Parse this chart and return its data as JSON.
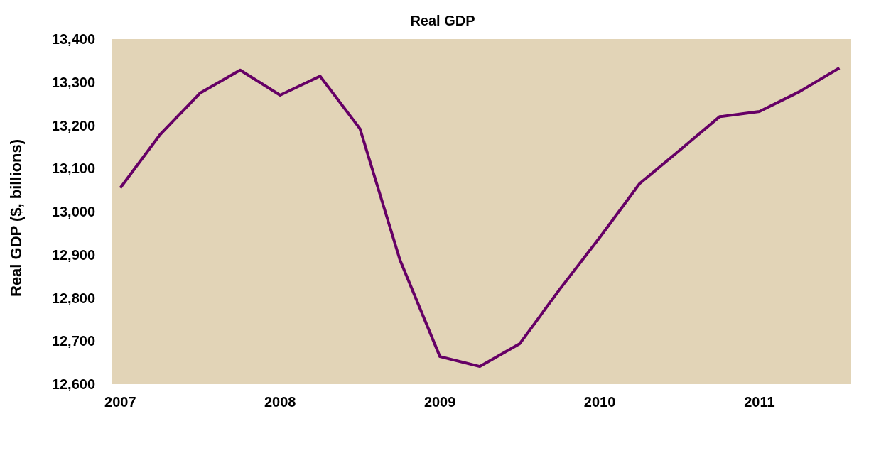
{
  "chart_data": {
    "type": "line",
    "title": "Real GDP",
    "ylabel": "Real GDP ($, billions)",
    "x": [
      "2007-01",
      "2007-04",
      "2007-07",
      "2007-10",
      "2008-01",
      "2008-04",
      "2008-07",
      "2008-10",
      "2009-01",
      "2009-04",
      "2009-07",
      "2009-10",
      "2010-01",
      "2010-04",
      "2010-07",
      "2010-10",
      "2011-01",
      "2011-04",
      "2011-07"
    ],
    "series": [
      {
        "color": "#660066",
        "values": [
          13055,
          13179,
          13275,
          13328,
          13270,
          13314,
          13192,
          12888,
          12664,
          12641,
          12694,
          12820,
          12940,
          13065,
          13142,
          13220,
          13232,
          13278,
          13333
        ]
      }
    ],
    "xlim": [
      "2006-12-13",
      "2011-07-28"
    ],
    "xticks": [
      "2007",
      "2008",
      "2009",
      "2010",
      "2011"
    ],
    "ylim": [
      12600,
      13400
    ],
    "yticks": [
      {
        "value": 12600,
        "label": "12,600"
      },
      {
        "value": 12700,
        "label": "12,700"
      },
      {
        "value": 12800,
        "label": "12,800"
      },
      {
        "value": 12900,
        "label": "12,900"
      },
      {
        "value": 13000,
        "label": "13,000"
      },
      {
        "value": 13100,
        "label": "13,100"
      },
      {
        "value": 13200,
        "label": "13,200"
      },
      {
        "value": 13300,
        "label": "13,300"
      },
      {
        "value": 13400,
        "label": "13,400"
      }
    ],
    "grid": false,
    "legend": false,
    "marker": "none",
    "line_style": "solid"
  }
}
